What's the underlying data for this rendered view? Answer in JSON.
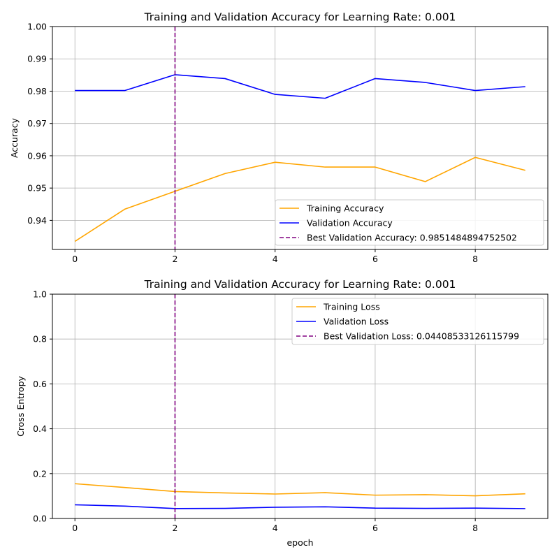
{
  "chart_data": [
    {
      "type": "line",
      "title": "Training and Validation Accuracy for Learning Rate: 0.001",
      "xlabel": "",
      "ylabel": "Accuracy",
      "xlim": [
        -0.45,
        9.45
      ],
      "ylim": [
        0.931,
        1.0
      ],
      "xticks": [
        0,
        2,
        4,
        6,
        8
      ],
      "xtick_labels": [
        "0",
        "2",
        "4",
        "6",
        "8"
      ],
      "yticks": [
        0.94,
        0.95,
        0.96,
        0.97,
        0.98,
        0.99,
        1.0
      ],
      "ytick_labels": [
        "0.94",
        "0.95",
        "0.96",
        "0.97",
        "0.98",
        "0.99",
        "1.00"
      ],
      "grid": true,
      "legend_position": "lower-right",
      "x": [
        0,
        1,
        2,
        3,
        4,
        5,
        6,
        7,
        8,
        9
      ],
      "series": [
        {
          "name": "Training Accuracy",
          "color": "#ffa500",
          "style": "solid",
          "values": [
            0.9335,
            0.9435,
            0.949,
            0.9545,
            0.958,
            0.9565,
            0.9565,
            0.952,
            0.9595,
            0.9555
          ]
        },
        {
          "name": "Validation Accuracy",
          "color": "#0000ff",
          "style": "solid",
          "values": [
            0.9802,
            0.9802,
            0.9851,
            0.9839,
            0.979,
            0.9778,
            0.9839,
            0.9827,
            0.9802,
            0.9814
          ]
        }
      ],
      "vline": {
        "name": "Best Validation Accuracy: 0.9851484894752502",
        "x": 2,
        "color": "#800080",
        "style": "dashed"
      }
    },
    {
      "type": "line",
      "title": "Training and Validation Accuracy for Learning Rate: 0.001",
      "xlabel": "epoch",
      "ylabel": "Cross Entropy",
      "xlim": [
        -0.45,
        9.45
      ],
      "ylim": [
        0.0,
        1.0
      ],
      "xticks": [
        0,
        2,
        4,
        6,
        8
      ],
      "xtick_labels": [
        "0",
        "2",
        "4",
        "6",
        "8"
      ],
      "yticks": [
        0.0,
        0.2,
        0.4,
        0.6,
        0.8,
        1.0
      ],
      "ytick_labels": [
        "0.0",
        "0.2",
        "0.4",
        "0.6",
        "0.8",
        "1.0"
      ],
      "grid": true,
      "legend_position": "upper-right",
      "x": [
        0,
        1,
        2,
        3,
        4,
        5,
        6,
        7,
        8,
        9
      ],
      "series": [
        {
          "name": "Training Loss",
          "color": "#ffa500",
          "style": "solid",
          "values": [
            0.155,
            0.138,
            0.12,
            0.114,
            0.109,
            0.115,
            0.104,
            0.106,
            0.101,
            0.11
          ]
        },
        {
          "name": "Validation Loss",
          "color": "#0000ff",
          "style": "solid",
          "values": [
            0.061,
            0.055,
            0.0441,
            0.045,
            0.05,
            0.052,
            0.046,
            0.045,
            0.046,
            0.044
          ]
        }
      ],
      "vline": {
        "name": "Best Validation Loss: 0.04408533126115799",
        "x": 2,
        "color": "#800080",
        "style": "dashed"
      }
    }
  ]
}
